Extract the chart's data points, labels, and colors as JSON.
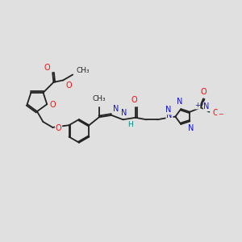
{
  "bg_color": "#e0e0e0",
  "bond_color": "#222222",
  "bond_lw": 1.3,
  "atom_colors": {
    "O": "#ee1111",
    "N": "#1111cc",
    "C": "#222222",
    "H": "#008888"
  },
  "font_size": 7.0
}
